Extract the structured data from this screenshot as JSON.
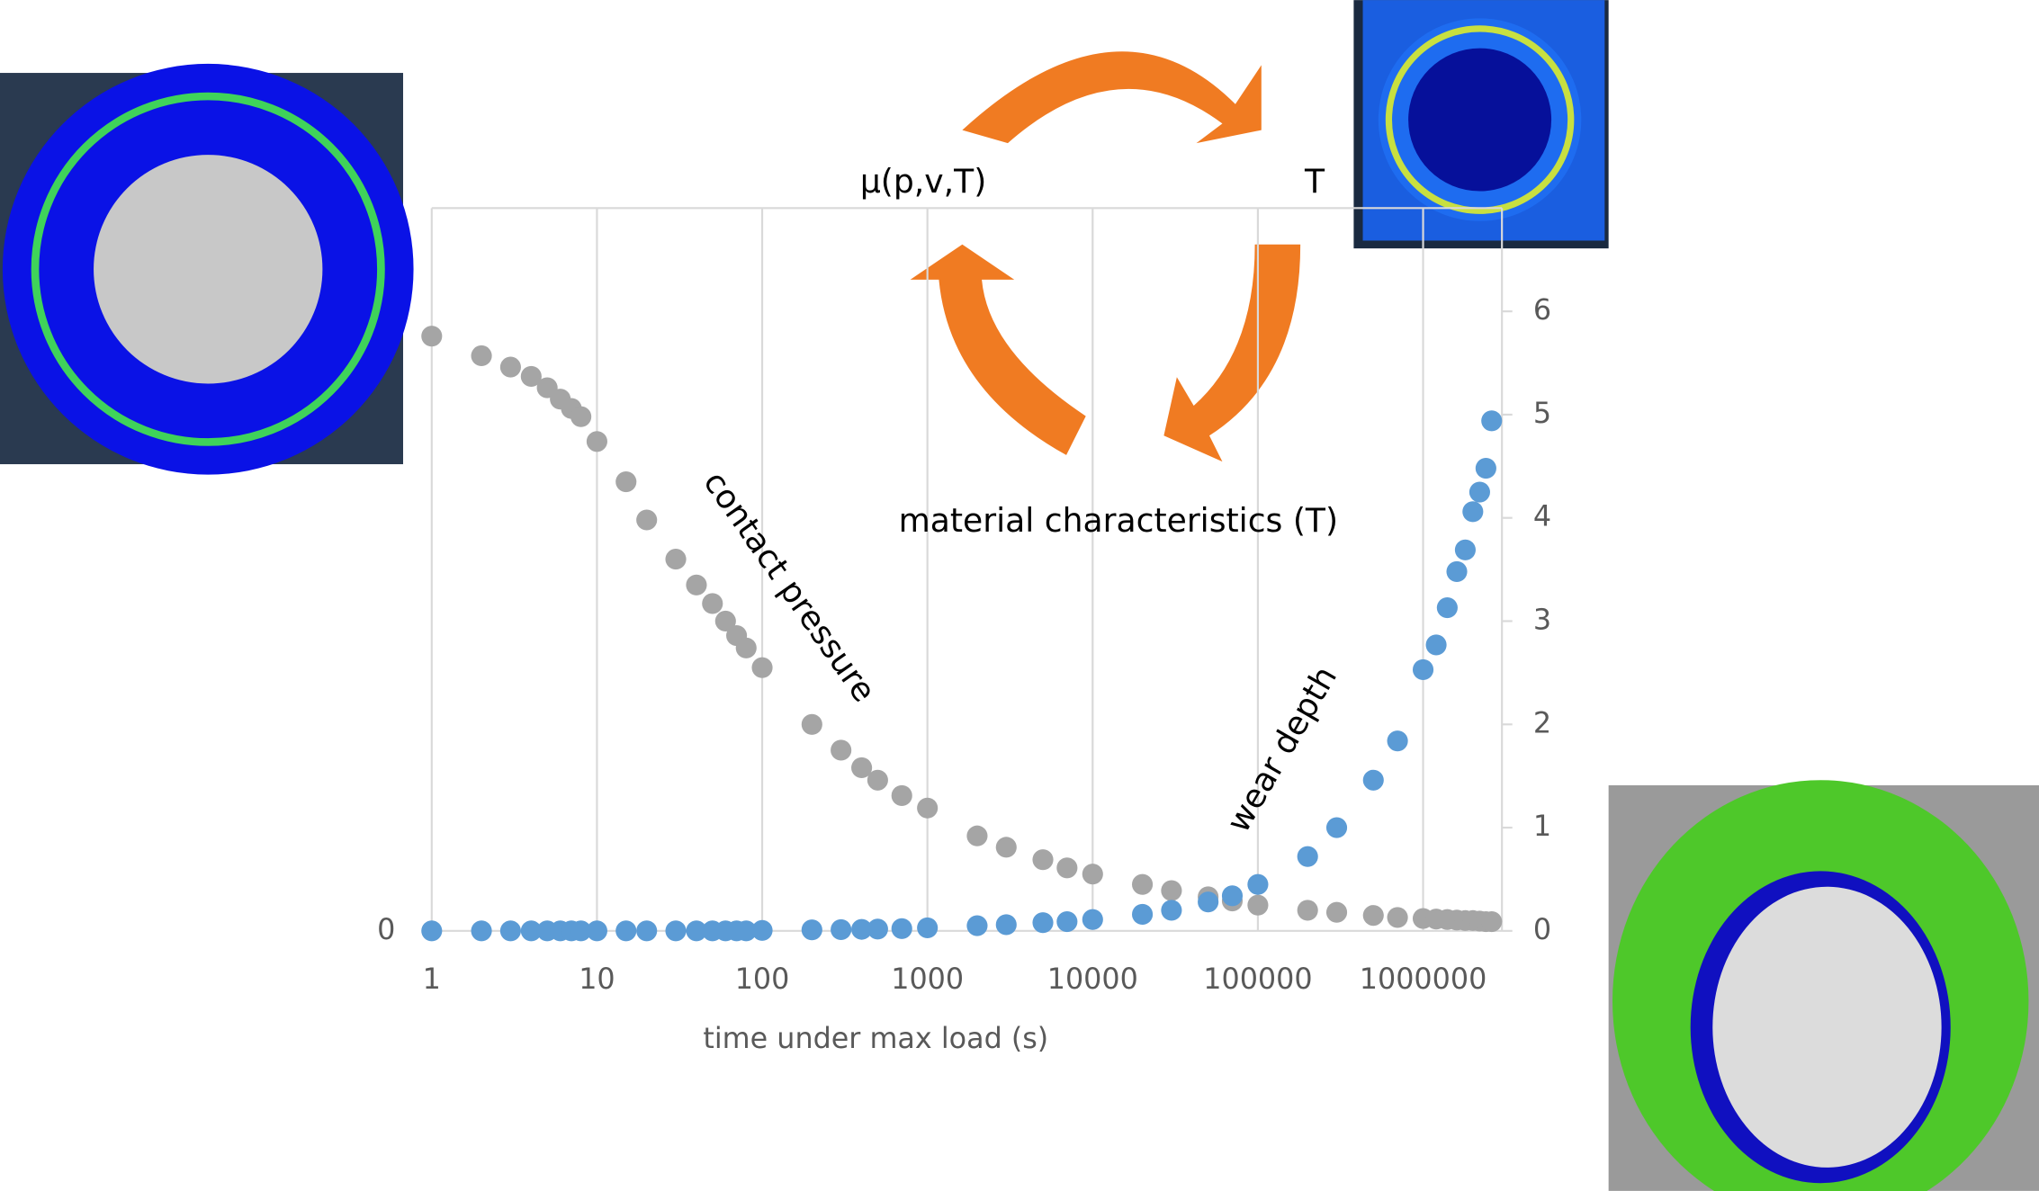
{
  "chart_data": {
    "type": "scatter",
    "x_label": "time under max load (s)",
    "annotations": [
      "contact pressure",
      "wear depth",
      "μ(p,v,T)",
      "T",
      "material characteristics (T)"
    ],
    "log_x": true,
    "grid": "x",
    "xlim": [
      1,
      3000000
    ],
    "xticks": [
      1,
      10,
      100,
      1000,
      10000,
      100000,
      1000000
    ],
    "ylim": [
      0,
      7
    ],
    "yticks": [
      0
    ],
    "y2lim": [
      0,
      7
    ],
    "y2ticks": [
      0,
      1,
      2,
      3,
      4,
      5,
      6
    ],
    "x": [
      1,
      2,
      3,
      4,
      5,
      6,
      7,
      8,
      10,
      15,
      20,
      30,
      40,
      50,
      60,
      70,
      80,
      100,
      200,
      300,
      400,
      500,
      700,
      1000,
      2000,
      3000,
      5000,
      7000,
      10000,
      20000,
      30000,
      50000,
      70000,
      100000,
      200000,
      300000,
      500000,
      700000,
      1000000,
      1200000,
      1400000,
      1600000,
      1800000,
      2000000,
      2200000,
      2400000,
      2600000
    ],
    "series": [
      {
        "name": "contact pressure",
        "axis": "y",
        "color": "#a5a5a5",
        "values": [
          5.76,
          5.57,
          5.46,
          5.37,
          5.26,
          5.15,
          5.06,
          4.98,
          4.74,
          4.35,
          3.98,
          3.6,
          3.35,
          3.17,
          3.0,
          2.86,
          2.74,
          2.55,
          2.0,
          1.75,
          1.58,
          1.46,
          1.31,
          1.19,
          0.92,
          0.81,
          0.69,
          0.61,
          0.55,
          0.45,
          0.39,
          0.33,
          0.29,
          0.25,
          0.2,
          0.18,
          0.15,
          0.13,
          0.12,
          0.115,
          0.11,
          0.105,
          0.1,
          0.1,
          0.095,
          0.09,
          0.09
        ]
      },
      {
        "name": "wear depth",
        "axis": "y2",
        "color": "#5b9bd5",
        "values": [
          0,
          0,
          0,
          0,
          0,
          0,
          0,
          0,
          0,
          0,
          0,
          0,
          0,
          0,
          0,
          0,
          0,
          0.005,
          0.01,
          0.012,
          0.015,
          0.018,
          0.022,
          0.03,
          0.05,
          0.06,
          0.08,
          0.09,
          0.11,
          0.16,
          0.2,
          0.28,
          0.34,
          0.45,
          0.72,
          1.0,
          1.46,
          1.84,
          2.53,
          2.77,
          3.13,
          3.48,
          3.69,
          4.06,
          4.25,
          4.48,
          4.94
        ]
      }
    ]
  }
}
